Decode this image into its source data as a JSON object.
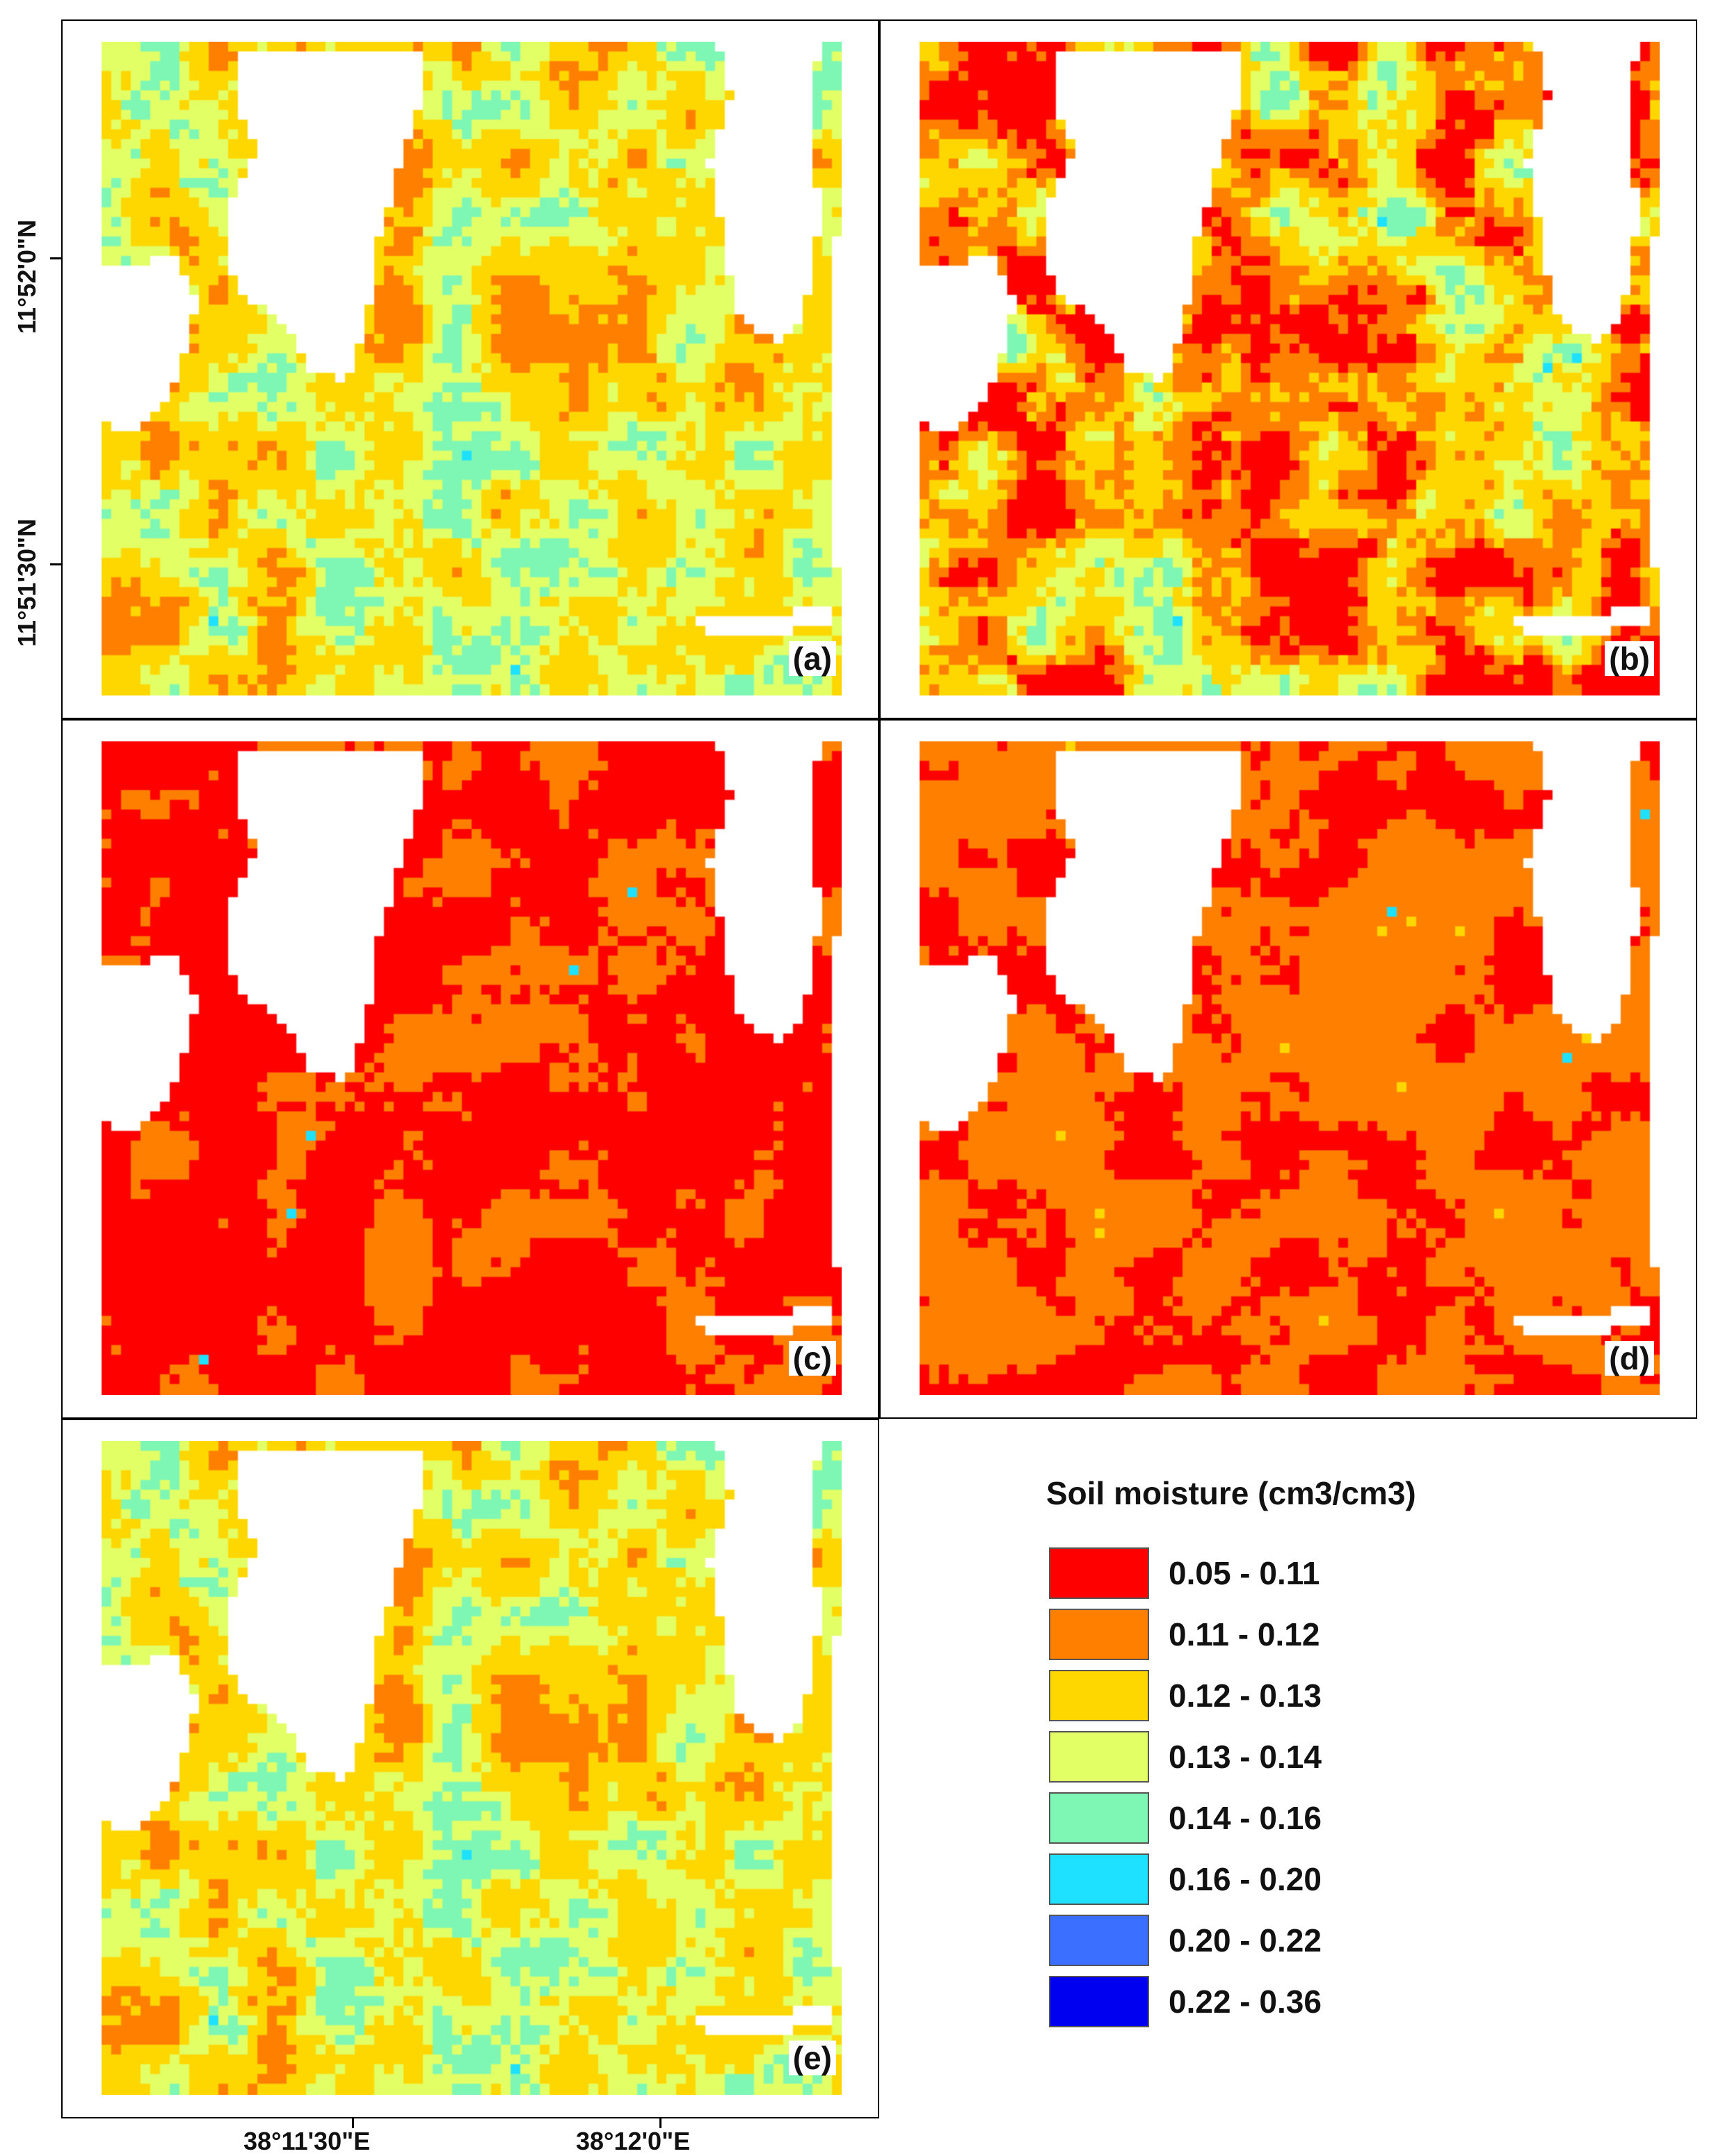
{
  "panels": [
    {
      "id": "a",
      "label": "(a)",
      "pattern": "a"
    },
    {
      "id": "b",
      "label": "(b)",
      "pattern": "b"
    },
    {
      "id": "c",
      "label": "(c)",
      "pattern": "c"
    },
    {
      "id": "d",
      "label": "(d)",
      "pattern": "d"
    },
    {
      "id": "e",
      "label": "(e)",
      "pattern": "e"
    }
  ],
  "axes": {
    "latitude_labels": [
      "11°52'0\"N",
      "11°51'30\"N"
    ],
    "longitude_labels": [
      "38°11'30\"E",
      "38°12'0\"E"
    ]
  },
  "legend": {
    "title": "Soil moisture (cm3/cm3)",
    "classes": [
      {
        "label": "0.05 - 0.11",
        "color": "#ff0000"
      },
      {
        "label": "0.11 - 0.12",
        "color": "#ff8000"
      },
      {
        "label": "0.12 - 0.13",
        "color": "#ffd700"
      },
      {
        "label": "0.13 - 0.14",
        "color": "#e2ff66"
      },
      {
        "label": "0.14 - 0.16",
        "color": "#7ff7b4"
      },
      {
        "label": "0.16 - 0.20",
        "color": "#1ee1ff"
      },
      {
        "label": "0.20 - 0.22",
        "color": "#3a6fff"
      },
      {
        "label": "0.22 - 0.36",
        "color": "#0000f0"
      }
    ]
  }
}
